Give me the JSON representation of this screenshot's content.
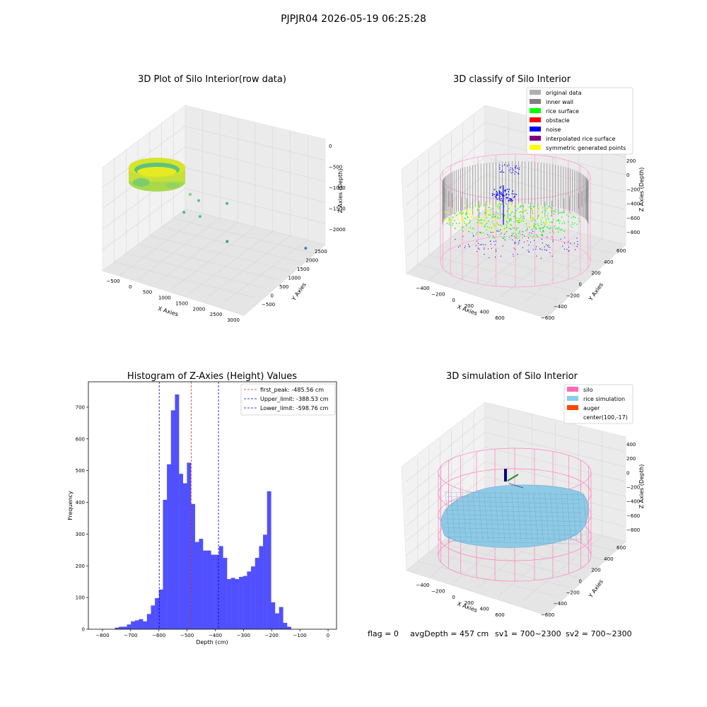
{
  "figure": {
    "suptitle": "PJPJR04 2026-05-19 06:25:28",
    "footer": {
      "flag": "flag = 0",
      "avg_depth": "avgDepth = 457 cm",
      "sv1": "sv1 = 700~2300",
      "sv2": "sv2 = 700~2300"
    }
  },
  "colors": {
    "hist_bar": "#5050ff",
    "first_peak_line": "#d62728",
    "limit_line": "#0000cc",
    "pane": "#f2f2f2",
    "grid": "#d9d9d9",
    "silo": "#ff69b4",
    "rice_sim": "#87ceeb",
    "auger": "#ff4500"
  },
  "chart_data": [
    {
      "type": "scatter3d",
      "title": "3D Plot of Silo Interior(row data)",
      "xlabel": "X Axies",
      "ylabel": "Y Axies",
      "zlabel": "Z Axies (Depth)",
      "x_ticks": [
        "−500",
        "0",
        "500",
        "1000",
        "1500",
        "2000",
        "2500",
        "3000"
      ],
      "y_ticks": [
        "−500",
        "0",
        "500",
        "1000",
        "1500",
        "2000",
        "2500"
      ],
      "z_ticks": [
        "0",
        "−500",
        "−1000",
        "−1500",
        "−2000"
      ],
      "xlim": [
        -700,
        3100
      ],
      "ylim": [
        -700,
        2700
      ],
      "zlim": [
        -2300,
        100
      ],
      "outliers": [
        {
          "x": 1000,
          "y": 300,
          "z": -500
        },
        {
          "x": 1100,
          "y": 500,
          "z": -700
        },
        {
          "x": 1600,
          "y": 900,
          "z": -800
        },
        {
          "x": 900,
          "y": 200,
          "z": -900
        },
        {
          "x": 1200,
          "y": 400,
          "z": -1000
        },
        {
          "x": 1800,
          "y": 600,
          "z": -1500
        },
        {
          "x": 2800,
          "y": 2300,
          "z": -2100
        }
      ]
    },
    {
      "type": "scatter3d",
      "title": "3D classify of Silo Interior",
      "xlabel": "X Axies",
      "ylabel": "Y Axies",
      "zlabel": "Z Axies (Depth)",
      "x_ticks": [
        "−400",
        "−200",
        "0",
        "200",
        "400",
        "600"
      ],
      "y_ticks": [
        "−600",
        "−400",
        "−200",
        "0",
        "200",
        "400",
        "600"
      ],
      "z_ticks": [
        "200",
        "0",
        "−200",
        "−400",
        "−600",
        "−800"
      ],
      "legend": [
        {
          "label": "original data",
          "color": "#b0b0b0"
        },
        {
          "label": "inner wall",
          "color": "#808080"
        },
        {
          "label": "rice surface",
          "color": "#00ff00"
        },
        {
          "label": "obstacle",
          "color": "#ff0000"
        },
        {
          "label": "noise",
          "color": "#0000ff"
        },
        {
          "label": "interpolated rice surface",
          "color": "#800080"
        },
        {
          "label": "symmetric generated points",
          "color": "#ffff00"
        }
      ]
    },
    {
      "type": "bar",
      "title": "Histogram of Z-Axies (Height) Values",
      "xlabel": "Depth (cm)",
      "ylabel": "Frequency",
      "xlim": [
        -850,
        30
      ],
      "ylim": [
        0,
        780
      ],
      "x_ticks": [
        -800,
        -700,
        -600,
        -500,
        -400,
        -300,
        -200,
        -100,
        0
      ],
      "y_ticks": [
        0,
        100,
        200,
        300,
        400,
        500,
        600,
        700
      ],
      "bin_width": 14.2,
      "bins_start": -756,
      "values": [
        5,
        8,
        8,
        15,
        25,
        28,
        32,
        25,
        48,
        75,
        98,
        125,
        408,
        520,
        690,
        740,
        490,
        460,
        525,
        395,
        275,
        285,
        248,
        248,
        235,
        235,
        262,
        225,
        158,
        162,
        158,
        165,
        168,
        182,
        198,
        225,
        262,
        298,
        435,
        85,
        50,
        70,
        20,
        8
      ],
      "vlines": [
        {
          "x": -485.56,
          "style": "first_peak"
        },
        {
          "x": -388.53,
          "style": "limit"
        },
        {
          "x": -598.76,
          "style": "limit"
        }
      ],
      "legend": [
        {
          "label": "first_peak: -485.56 cm",
          "style": "first_peak"
        },
        {
          "label": "Upper_limit: -388.53 cm",
          "style": "limit"
        },
        {
          "label": "Lower_limit: -598.76 cm",
          "style": "limit"
        }
      ]
    },
    {
      "type": "surface3d",
      "title": "3D simulation of Silo Interior",
      "xlabel": "X Axies",
      "ylabel": "Y Axies",
      "zlabel": "Z Axies (Depth)",
      "x_ticks": [
        "−400",
        "−200",
        "0",
        "200",
        "400",
        "600"
      ],
      "y_ticks": [
        "−600",
        "−400",
        "−200",
        "0",
        "200",
        "400",
        "600"
      ],
      "z_ticks": [
        "400",
        "200",
        "0",
        "−200",
        "−400",
        "−600",
        "−800"
      ],
      "legend": [
        {
          "label": "silo",
          "color": "#ff69b4"
        },
        {
          "label": "rice simulation",
          "color": "#87ceeb"
        },
        {
          "label": "auger",
          "color": "#ff4500"
        },
        {
          "label": "center(100,-17)",
          "color": ""
        }
      ]
    }
  ]
}
